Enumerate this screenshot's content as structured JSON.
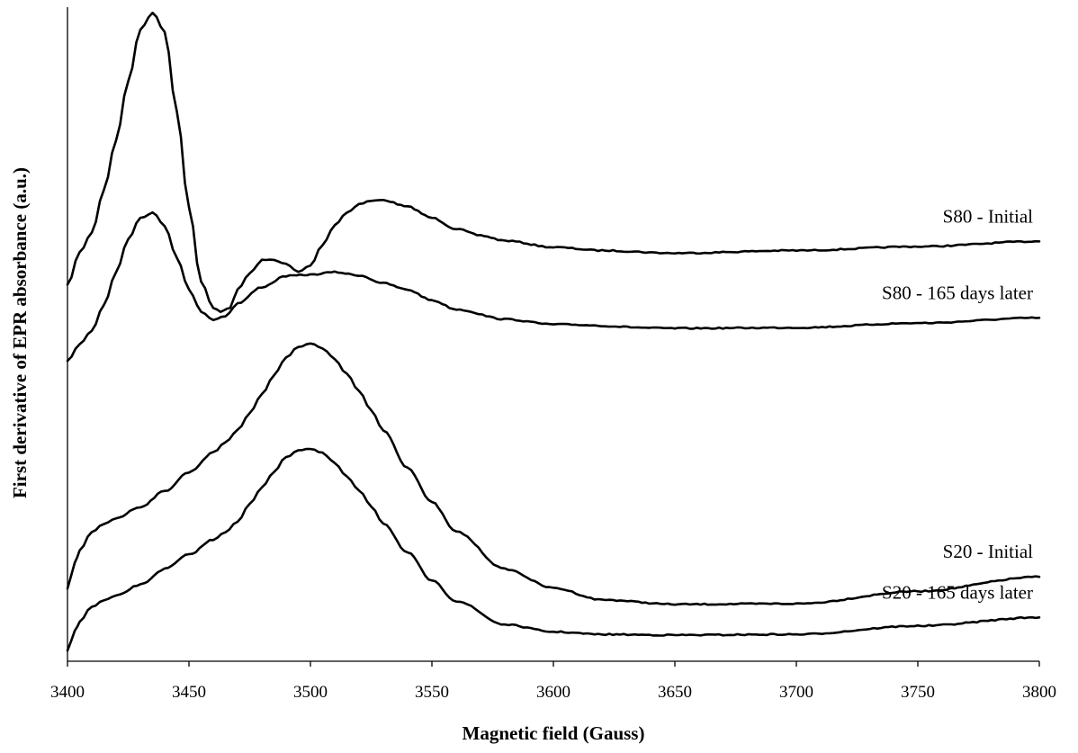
{
  "chart_data": {
    "type": "line",
    "title": "",
    "xlabel": "Magnetic field (Gauss)",
    "ylabel": "First derivative of EPR absorbance (a.u.)",
    "xlim": [
      3400,
      3800
    ],
    "ylim": [
      0,
      100
    ],
    "x_ticks": [
      3400,
      3450,
      3500,
      3550,
      3600,
      3650,
      3700,
      3750,
      3800
    ],
    "grid": false,
    "legend": "inline labels at right end of each curve",
    "line_color": "#000000",
    "series": [
      {
        "name": "S80 - Initial",
        "x": [
          3400,
          3405,
          3410,
          3415,
          3420,
          3425,
          3430,
          3435,
          3440,
          3445,
          3450,
          3455,
          3460,
          3463,
          3467,
          3470,
          3475,
          3480,
          3485,
          3490,
          3495,
          3500,
          3505,
          3510,
          3515,
          3520,
          3525,
          3530,
          3540,
          3550,
          3560,
          3570,
          3580,
          3600,
          3620,
          3650,
          3700,
          3750,
          3800
        ],
        "y": [
          57.5,
          62.5,
          65.5,
          72.1,
          79.7,
          88.7,
          96.6,
          99.2,
          96.3,
          84.1,
          69.4,
          58.0,
          54.0,
          53.5,
          54.1,
          56.8,
          59.3,
          61.3,
          61.4,
          60.7,
          59.5,
          60.5,
          63.7,
          66.7,
          68.6,
          69.9,
          70.4,
          70.5,
          69.5,
          67.8,
          66.1,
          65.1,
          64.3,
          63.3,
          62.8,
          62.4,
          62.8,
          63.4,
          64.2
        ]
      },
      {
        "name": "S80 - 165 days later",
        "x": [
          3400,
          3405,
          3410,
          3415,
          3420,
          3425,
          3430,
          3435,
          3440,
          3445,
          3450,
          3455,
          3460,
          3465,
          3470,
          3480,
          3490,
          3500,
          3510,
          3520,
          3530,
          3540,
          3550,
          3560,
          3580,
          3600,
          3650,
          3700,
          3750,
          3800
        ],
        "y": [
          46.0,
          48.5,
          50.5,
          54.5,
          59.5,
          64.6,
          67.8,
          68.6,
          66.6,
          61.8,
          56.8,
          53.5,
          52.2,
          52.8,
          54.7,
          57.2,
          58.9,
          59.1,
          59.5,
          59.0,
          57.8,
          56.8,
          55.2,
          53.8,
          52.3,
          51.5,
          50.9,
          51.0,
          51.7,
          52.5
        ]
      },
      {
        "name": "S20 - Initial",
        "x": [
          3400,
          3403,
          3405,
          3410,
          3415,
          3420,
          3430,
          3440,
          3450,
          3460,
          3465,
          3470,
          3475,
          3480,
          3485,
          3490,
          3495,
          3500,
          3505,
          3510,
          3515,
          3520,
          3525,
          3530,
          3540,
          3550,
          3560,
          3580,
          3600,
          3620,
          3650,
          3700,
          3750,
          3800
        ],
        "y": [
          11.1,
          15.0,
          16.9,
          19.7,
          21.0,
          21.9,
          23.6,
          26.0,
          28.9,
          31.9,
          33.5,
          35.3,
          38.0,
          40.8,
          43.7,
          46.5,
          48.1,
          48.6,
          47.8,
          46.2,
          43.9,
          41.3,
          38.3,
          35.3,
          29.6,
          24.3,
          19.8,
          14.1,
          11.2,
          9.4,
          8.7,
          8.8,
          10.7,
          12.9
        ]
      },
      {
        "name": "S20 - 165 days later",
        "x": [
          3400,
          3403,
          3405,
          3410,
          3415,
          3420,
          3430,
          3440,
          3450,
          3460,
          3465,
          3470,
          3475,
          3480,
          3485,
          3490,
          3495,
          3500,
          3505,
          3510,
          3515,
          3520,
          3525,
          3530,
          3540,
          3550,
          3560,
          3580,
          3600,
          3620,
          3650,
          3700,
          3750,
          3800
        ],
        "y": [
          1.6,
          4.6,
          6.1,
          8.3,
          9.3,
          10.0,
          11.7,
          14.1,
          16.3,
          18.6,
          19.8,
          21.3,
          24.0,
          26.6,
          29.0,
          31.2,
          32.3,
          32.5,
          31.8,
          30.3,
          28.2,
          26.1,
          23.7,
          21.1,
          16.6,
          12.3,
          9.2,
          5.6,
          4.5,
          4.1,
          4.0,
          4.1,
          5.4,
          6.7
        ]
      }
    ]
  }
}
